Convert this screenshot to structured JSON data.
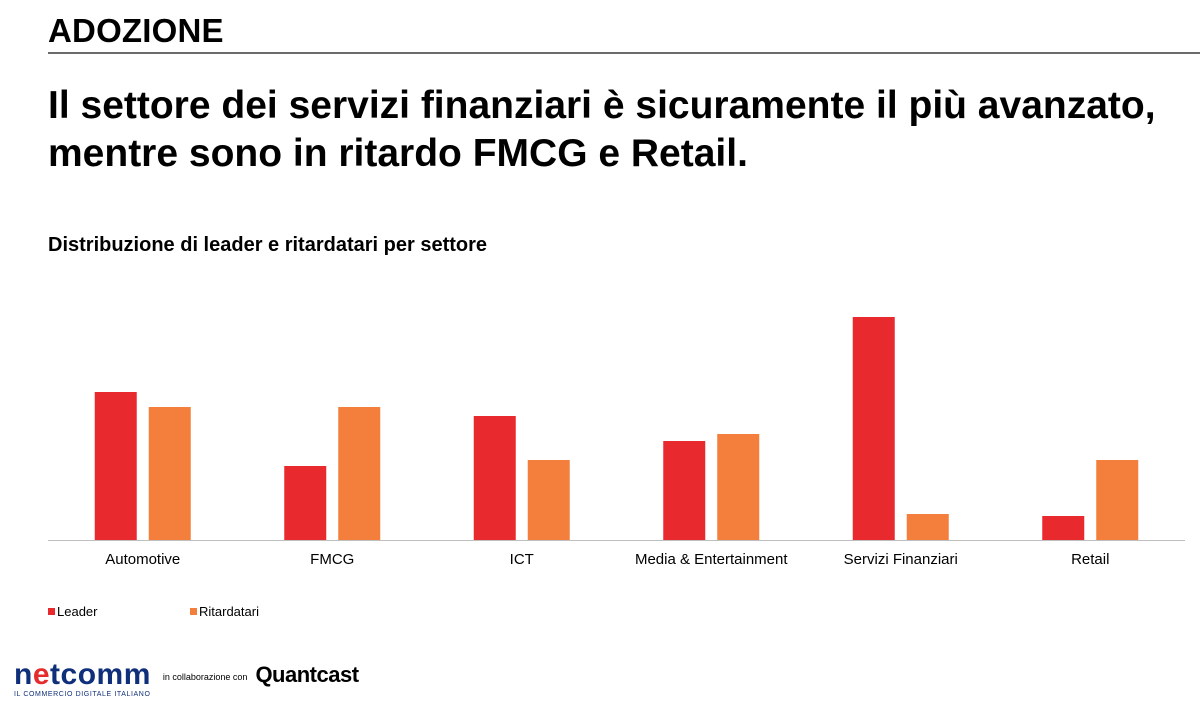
{
  "header": {
    "section_title": "ADOZIONE",
    "headline": "Il settore dei servizi finanziari è sicuramente il più avanzato, mentre sono in ritardo FMCG e Retail."
  },
  "colors": {
    "leader": "#e8292e",
    "ritardatari": "#f47f3c",
    "axis": "#bfbfbf"
  },
  "chart_data": {
    "type": "bar",
    "title": "Distribuzione di leader e ritardatari per settore",
    "xlabel": "",
    "ylabel": "",
    "categories": [
      "Automotive",
      "FMCG",
      "ICT",
      "Media & Entertainment",
      "Servizi Finanziari",
      "Retail"
    ],
    "series": [
      {
        "name": "Leader",
        "values": [
          148,
          74,
          124,
          99,
          223,
          24
        ]
      },
      {
        "name": "Ritardatari",
        "values": [
          133,
          133,
          80,
          106,
          26,
          80
        ]
      }
    ],
    "ylim": [
      0,
      240
    ],
    "grid": false,
    "legend_position": "bottom-left"
  },
  "footer": {
    "logo_text_before": "n",
    "logo_text_accent": "e",
    "logo_text_after": "tcomm",
    "logo_tagline": "IL COMMERCIO DIGITALE ITALIANO",
    "collab_text": "in collaborazione con",
    "partner_name": "Quantcast"
  }
}
